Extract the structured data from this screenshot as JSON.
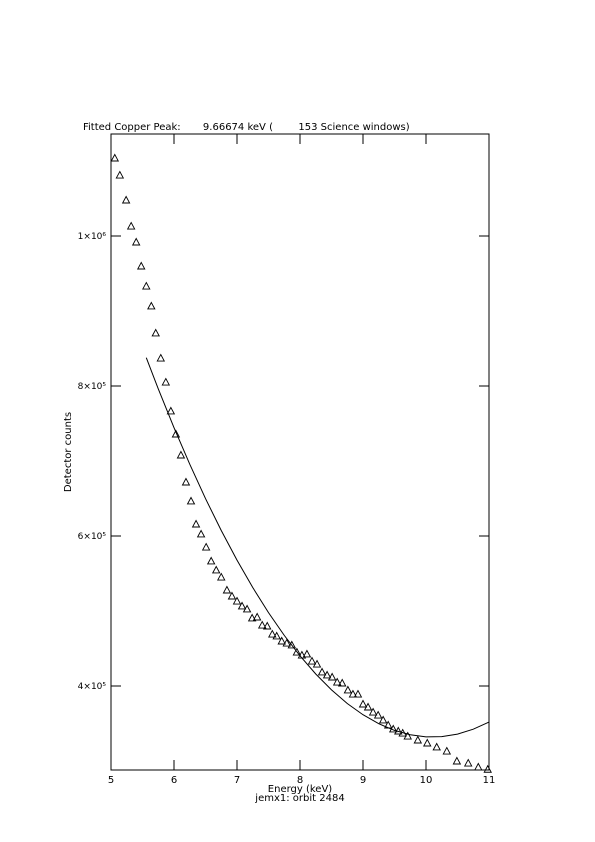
{
  "chart_data": {
    "type": "scatter",
    "title": "Fitted Copper Peak:       9.66674 keV (        153 Science windows)",
    "x_label": "Energy (keV)",
    "subtitle": "jemx1: orbit 2484",
    "y_label": "Detector counts",
    "xlim": [
      5,
      11
    ],
    "xticks": [
      5,
      6,
      7,
      8,
      9,
      10,
      11
    ],
    "ylim": [
      288000,
      1136000
    ],
    "yticks": [
      {
        "value": 400000,
        "label": "4×10⁵"
      },
      {
        "value": 600000,
        "label": "6×10⁵"
      },
      {
        "value": 800000,
        "label": "8×10⁵"
      },
      {
        "value": 1000000,
        "label": "1×10⁶"
      }
    ],
    "series": [
      {
        "type": "scatter",
        "marker": "triangle",
        "color": "#000000",
        "x": [
          5.06,
          5.14,
          5.24,
          5.32,
          5.4,
          5.48,
          5.56,
          5.64,
          5.71,
          5.79,
          5.87,
          5.95,
          6.03,
          6.11,
          6.19,
          6.27,
          6.35,
          6.43,
          6.51,
          6.59,
          6.67,
          6.75,
          6.84,
          6.92,
          7.0,
          7.08,
          7.16,
          7.24,
          7.32,
          7.4,
          7.48,
          7.56,
          7.63,
          7.71,
          7.79,
          7.87,
          7.95,
          8.03,
          8.11,
          8.19,
          8.27,
          8.35,
          8.43,
          8.51,
          8.59,
          8.67,
          8.76,
          8.84,
          8.92,
          9.0,
          9.08,
          9.16,
          9.24,
          9.32,
          9.4,
          9.48,
          9.56,
          9.63,
          9.71,
          9.87,
          10.02,
          10.17,
          10.33,
          10.49,
          10.67,
          10.83,
          10.98
        ],
        "values": [
          1104000,
          1081300,
          1048000,
          1013300,
          992000,
          960000,
          933300,
          906700,
          870700,
          837300,
          805300,
          766700,
          736000,
          708000,
          672000,
          646700,
          616000,
          602700,
          585300,
          566700,
          554700,
          545300,
          528000,
          520000,
          513300,
          506700,
          502700,
          490700,
          492000,
          481300,
          480000,
          469300,
          466700,
          460000,
          457300,
          454700,
          445300,
          441300,
          442700,
          433300,
          429300,
          418700,
          414700,
          412000,
          405300,
          404000,
          394700,
          389300,
          389300,
          376000,
          372000,
          365300,
          361300,
          354700,
          348000,
          342700,
          340000,
          337300,
          333300,
          328000,
          324000,
          318700,
          313300,
          300000,
          297300,
          292000,
          289000
        ]
      },
      {
        "type": "line",
        "color": "#000000",
        "x": [
          5.56,
          5.75,
          6,
          6.25,
          6.5,
          6.75,
          7,
          7.25,
          7.5,
          7.75,
          8,
          8.25,
          8.5,
          8.75,
          9,
          9.25,
          9.5,
          9.75,
          10,
          10.25,
          10.5,
          10.75,
          11
        ],
        "values": [
          837700,
          796200,
          744400,
          695700,
          649900,
          607300,
          567800,
          531300,
          497800,
          467500,
          440200,
          416000,
          394800,
          376700,
          361700,
          349700,
          340800,
          335000,
          332250,
          332550,
          335900,
          342400,
          351900
        ]
      }
    ]
  }
}
